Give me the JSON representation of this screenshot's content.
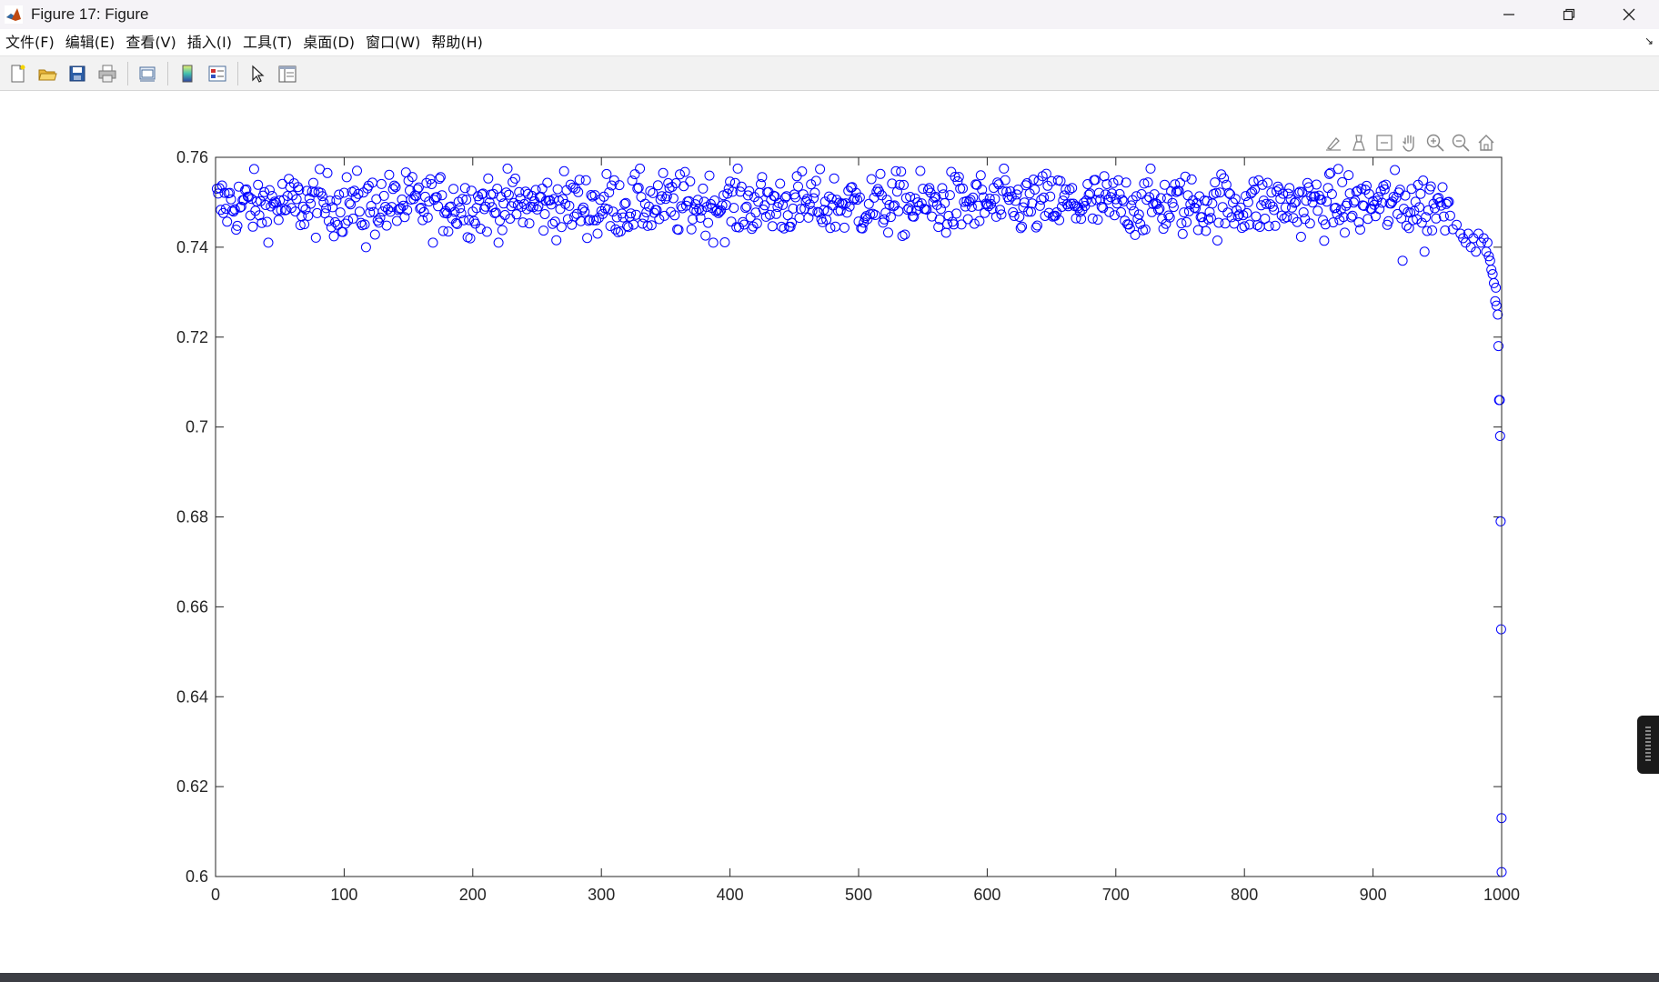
{
  "window": {
    "title": "Figure 17: Figure"
  },
  "menu": {
    "items": [
      "文件(F)",
      "编辑(E)",
      "查看(V)",
      "插入(I)",
      "工具(T)",
      "桌面(D)",
      "窗口(W)",
      "帮助(H)"
    ],
    "items_underline": [
      "F",
      "E",
      "V",
      "I",
      "T",
      "D",
      "W",
      "H"
    ]
  },
  "toolbar": {
    "buttons": [
      "new-figure-icon",
      "open-file-icon",
      "save-icon",
      "print-icon",
      "link-plot-icon",
      "colorbar-icon",
      "legend-icon",
      "edit-plot-arrow-icon",
      "property-inspector-icon"
    ]
  },
  "axes_toolbar": {
    "buttons": [
      "brush-icon",
      "data-tips-icon",
      "restore-view-icon",
      "pan-icon",
      "zoom-in-icon",
      "zoom-out-icon",
      "home-icon"
    ]
  },
  "chart_data": {
    "type": "scatter",
    "marker": "circle",
    "marker_color": "#0000ff",
    "title": "",
    "xlabel": "",
    "ylabel": "",
    "xlim": [
      0,
      1000
    ],
    "ylim": [
      0.6,
      0.76
    ],
    "xticks": [
      "0",
      "100",
      "200",
      "300",
      "400",
      "500",
      "600",
      "700",
      "800",
      "900",
      "1000"
    ],
    "yticks": [
      "0.6",
      "0.62",
      "0.64",
      "0.66",
      "0.68",
      "0.7",
      "0.72",
      "0.74",
      "0.76"
    ],
    "grid": false,
    "box": true,
    "num_points": 1000,
    "plateau": {
      "x_range": [
        1,
        960
      ],
      "mean": 0.7495,
      "spread": 0.0035,
      "outliers": [
        [
          117,
          0.74
        ],
        [
          297,
          0.743
        ],
        [
          923,
          0.737
        ],
        [
          940,
          0.739
        ]
      ]
    },
    "tail_points": [
      [
        962,
        0.744
      ],
      [
        965,
        0.745
      ],
      [
        968,
        0.743
      ],
      [
        970,
        0.742
      ],
      [
        972,
        0.741
      ],
      [
        974,
        0.743
      ],
      [
        976,
        0.74
      ],
      [
        978,
        0.742
      ],
      [
        980,
        0.739
      ],
      [
        982,
        0.743
      ],
      [
        984,
        0.741
      ],
      [
        986,
        0.742
      ],
      [
        988,
        0.739
      ],
      [
        989,
        0.741
      ],
      [
        990,
        0.738
      ],
      [
        991,
        0.737
      ],
      [
        992,
        0.735
      ],
      [
        993,
        0.734
      ],
      [
        994,
        0.732
      ],
      [
        995,
        0.728
      ],
      [
        995.5,
        0.731
      ],
      [
        996,
        0.727
      ],
      [
        997,
        0.725
      ],
      [
        997.5,
        0.718
      ],
      [
        998,
        0.706
      ],
      [
        998.5,
        0.706
      ],
      [
        998.8,
        0.698
      ],
      [
        999.2,
        0.679
      ],
      [
        999.6,
        0.655
      ],
      [
        999.9,
        0.613
      ],
      [
        1000,
        0.601
      ]
    ]
  }
}
